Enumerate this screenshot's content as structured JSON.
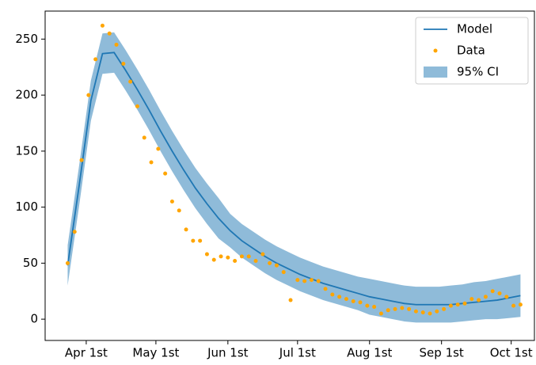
{
  "chart_data": {
    "type": "line",
    "xlim": [
      -17.7,
      193
    ],
    "ylim": [
      -19,
      275
    ],
    "xticks": [
      {
        "value": 0,
        "label": "Apr 1st"
      },
      {
        "value": 30,
        "label": "May 1st"
      },
      {
        "value": 61,
        "label": "Jun 1st"
      },
      {
        "value": 91,
        "label": "Jul 1st"
      },
      {
        "value": 122,
        "label": "Aug 1st"
      },
      {
        "value": 153,
        "label": "Sep 1st"
      },
      {
        "value": 183,
        "label": "Oct 1st"
      }
    ],
    "yticks": [
      0,
      50,
      100,
      150,
      200,
      250
    ],
    "legend": "upper right",
    "series": [
      {
        "name": "Model",
        "color": "#1f77b4",
        "x": [
          -8,
          -3,
          2,
          7,
          12,
          17,
          22,
          27,
          32,
          37,
          42,
          47,
          52,
          57,
          62,
          67,
          72,
          77,
          82,
          87,
          92,
          97,
          102,
          107,
          112,
          117,
          122,
          127,
          132,
          137,
          142,
          147,
          152,
          157,
          162,
          167,
          172,
          177,
          182,
          187
        ],
        "values": [
          48,
          120,
          195,
          237,
          238,
          222,
          205,
          187,
          168,
          150,
          133,
          117,
          103,
          90,
          79,
          70,
          63,
          56,
          50,
          45,
          40,
          36,
          32,
          29,
          26,
          23,
          20,
          18,
          16,
          14,
          13,
          13,
          13,
          13,
          14,
          15,
          16,
          17,
          19,
          21
        ]
      },
      {
        "name": "Data",
        "color": "#ffa500",
        "x": [
          -8,
          -5,
          -2,
          1,
          4,
          7,
          10,
          13,
          16,
          19,
          22,
          25,
          28,
          31,
          34,
          37,
          40,
          43,
          46,
          49,
          52,
          55,
          58,
          61,
          64,
          67,
          70,
          73,
          76,
          79,
          82,
          85,
          88,
          91,
          94,
          97,
          100,
          103,
          106,
          109,
          112,
          115,
          118,
          121,
          124,
          127,
          130,
          133,
          136,
          139,
          142,
          145,
          148,
          151,
          154,
          157,
          160,
          163,
          166,
          169,
          172,
          175,
          178,
          181,
          184,
          187
        ],
        "values": [
          50,
          78,
          142,
          200,
          232,
          262,
          255,
          245,
          228,
          212,
          190,
          162,
          140,
          152,
          130,
          105,
          97,
          80,
          70,
          70,
          58,
          53,
          56,
          55,
          52,
          56,
          56,
          52,
          58,
          50,
          48,
          42,
          17,
          35,
          34,
          35,
          34,
          27,
          22,
          20,
          18,
          16,
          15,
          12,
          11,
          5,
          8,
          9,
          10,
          9,
          7,
          6,
          5,
          7,
          9,
          12,
          13,
          14,
          18,
          17,
          20,
          25,
          23,
          20,
          12,
          13
        ]
      },
      {
        "name": "95% CI",
        "color": "#8fbbd9",
        "x": [
          -8,
          -3,
          2,
          7,
          12,
          17,
          22,
          27,
          32,
          37,
          42,
          47,
          52,
          57,
          62,
          67,
          72,
          77,
          82,
          87,
          92,
          97,
          102,
          107,
          112,
          117,
          122,
          127,
          132,
          137,
          142,
          147,
          152,
          157,
          162,
          167,
          172,
          177,
          182,
          187
        ],
        "lower": [
          30,
          102,
          177,
          219,
          220,
          204,
          187,
          169,
          150,
          132,
          115,
          99,
          85,
          72,
          64,
          55,
          48,
          41,
          35,
          30,
          25,
          21,
          17,
          14,
          11,
          8,
          4,
          2,
          0,
          -2,
          -3,
          -3,
          -3,
          -3,
          -2,
          -1,
          0,
          0,
          1,
          2
        ],
        "upper": [
          66,
          138,
          213,
          255,
          256,
          240,
          223,
          205,
          186,
          168,
          151,
          135,
          121,
          108,
          94,
          85,
          78,
          71,
          65,
          60,
          55,
          51,
          47,
          44,
          41,
          38,
          36,
          34,
          32,
          30,
          29,
          29,
          29,
          30,
          31,
          33,
          34,
          36,
          38,
          40
        ]
      }
    ]
  }
}
